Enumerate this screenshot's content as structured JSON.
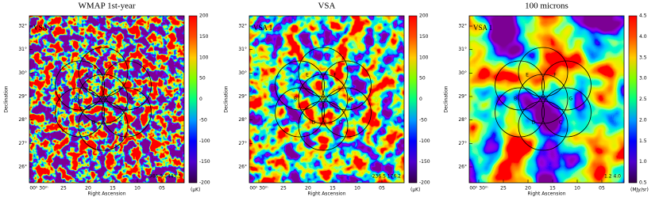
{
  "panels": [
    {
      "title": "WMAP 1st-year",
      "field_label": "VSA 1",
      "range_note": "-986.9 1443.3",
      "y_label": "Declination",
      "x_label": "Right Ascension",
      "y_ticks": [
        "32°",
        "31°",
        "30°",
        "29°",
        "28°",
        "27°",
        "26°"
      ],
      "x_ticks": [
        "00ʰ 30ᵐ",
        "25",
        "20",
        "15",
        "10",
        "05"
      ],
      "colorbar_ticks": [
        "200",
        "150",
        "100",
        "50",
        "0",
        "-50",
        "-100",
        "-150",
        "-200"
      ],
      "colorbar_unit": "(μK)",
      "circle_labels": [
        "E",
        "F",
        "B",
        "A",
        "G",
        "D",
        "C"
      ]
    },
    {
      "title": "VSA",
      "field_label": "VSA 1",
      "range_note": "-236.5 176.2",
      "y_label": "Declination",
      "x_label": "Right Ascension",
      "y_ticks": [
        "32°",
        "31°",
        "30°",
        "29°",
        "28°",
        "27°",
        "26°"
      ],
      "x_ticks": [
        "00ʰ 30ᵐ",
        "25",
        "20",
        "15",
        "10",
        "05"
      ],
      "colorbar_ticks": [
        "200",
        "150",
        "100",
        "50",
        "0",
        "-50",
        "-100",
        "-150",
        "-200"
      ],
      "colorbar_unit": "(μK)",
      "circle_labels": [
        "E",
        "F",
        "B",
        "A",
        "G",
        "D",
        "C"
      ]
    },
    {
      "title": "100 microns",
      "field_label": "VSA 1",
      "range_note": "1.2 4.0",
      "y_label": "Declination",
      "x_label": "Right Ascension",
      "y_ticks": [
        "32°",
        "31°",
        "30°",
        "29°",
        "28°",
        "27°",
        "26°"
      ],
      "x_ticks": [
        "00ʰ 30ᵐ",
        "25",
        "20",
        "15",
        "10",
        "05"
      ],
      "colorbar_ticks": [
        "4.5",
        "4.0",
        "3.5",
        "3.0",
        "2.5",
        "2.0",
        "1.5",
        "1.0",
        "0.5"
      ],
      "colorbar_unit": "(MJy/sr)",
      "circle_labels": [
        "E",
        "F",
        "B",
        "A",
        "G",
        "D",
        "C"
      ]
    }
  ]
}
